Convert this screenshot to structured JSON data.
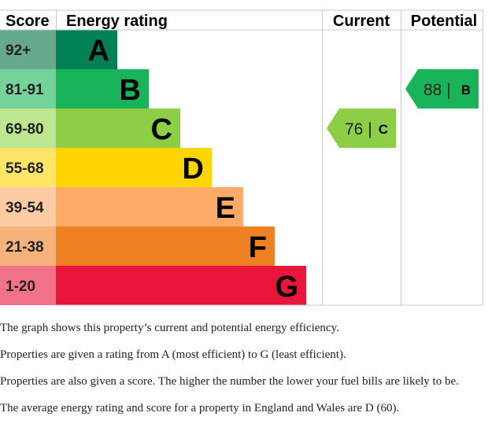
{
  "chart_data": {
    "type": "bar",
    "header": {
      "score": "Score",
      "rating": "Energy rating",
      "current": "Current",
      "potential": "Potential"
    },
    "bands": [
      {
        "score": "92+",
        "letter": "A",
        "color": "#008054",
        "score_bg": "#66a98c"
      },
      {
        "score": "81-91",
        "letter": "B",
        "color": "#19b459",
        "score_bg": "#75d29b"
      },
      {
        "score": "69-80",
        "letter": "C",
        "color": "#8dce46",
        "score_bg": "#bce68f"
      },
      {
        "score": "55-68",
        "letter": "D",
        "color": "#ffd500",
        "score_bg": "#ffe566"
      },
      {
        "score": "39-54",
        "letter": "E",
        "color": "#fcaa65",
        "score_bg": "#fdcca3"
      },
      {
        "score": "21-38",
        "letter": "F",
        "color": "#ef8023",
        "score_bg": "#f5b37b"
      },
      {
        "score": "1-20",
        "letter": "G",
        "color": "#e9153b",
        "score_bg": "#f27389"
      }
    ],
    "current": {
      "value": 76,
      "letter": "C",
      "color": "#8dce46"
    },
    "potential": {
      "value": 88,
      "letter": "B",
      "color": "#19b459"
    }
  },
  "description": [
    "The graph shows this property’s current and potential energy efficiency.",
    "Properties are given a rating from A (most efficient) to G (least efficient).",
    "Properties are also given a score. The higher the number the lower your fuel bills are likely to be.",
    "The average energy rating and score for a property in England and Wales are D (60)."
  ]
}
